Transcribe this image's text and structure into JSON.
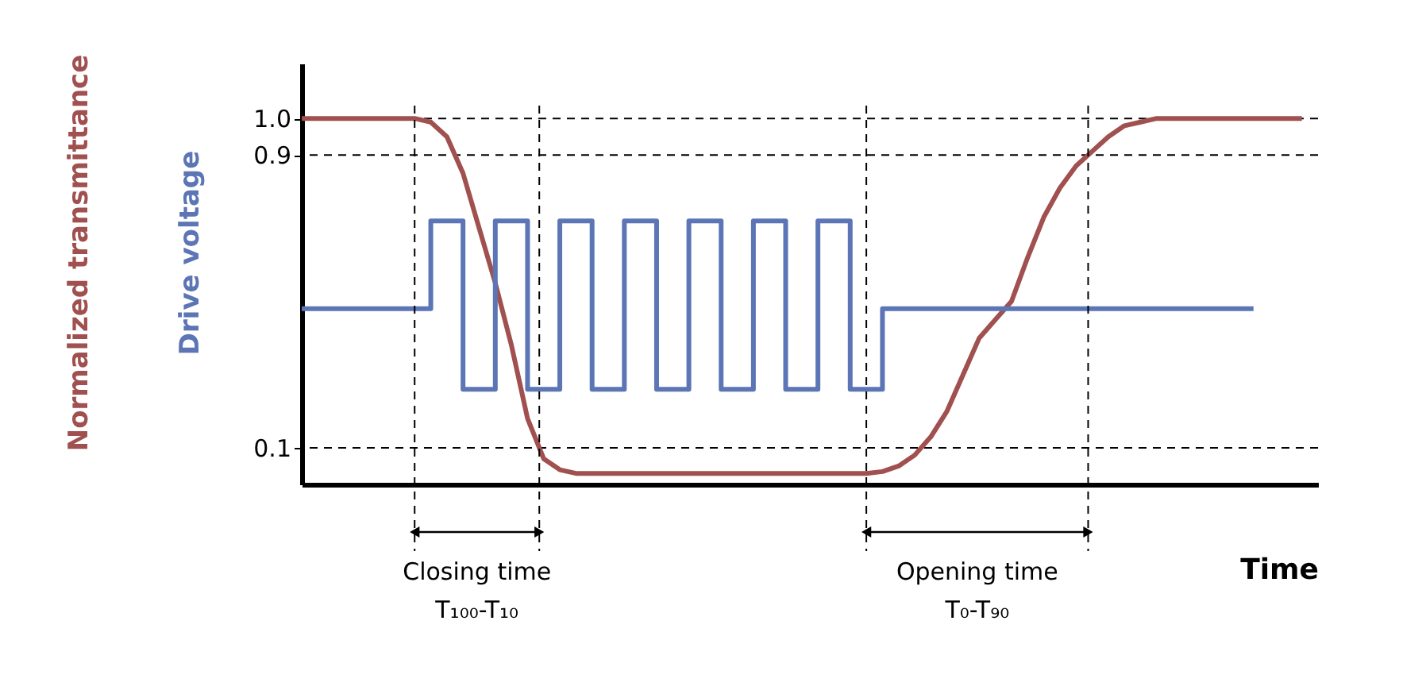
{
  "chart_data": {
    "type": "line",
    "xlabel": "Time",
    "categories": [
      null,
      null,
      null,
      null,
      null,
      null,
      null,
      null,
      null,
      null,
      null,
      null,
      null,
      null,
      null,
      null,
      null,
      null,
      null,
      null,
      null,
      null,
      null,
      null,
      null,
      null,
      null,
      null,
      null,
      null,
      null,
      null,
      null,
      null,
      null,
      null,
      null,
      null,
      null,
      null,
      null,
      null,
      null,
      null,
      null,
      null,
      null,
      null,
      null,
      null,
      null,
      null,
      null,
      null,
      null,
      null,
      null,
      null,
      null,
      null,
      null,
      null,
      null,
      null
    ],
    "ylim": [
      0,
      1.15
    ],
    "yticks": [
      0.1,
      0.9,
      {
        "value": 1,
        "label": "1.0"
      }
    ],
    "series": [
      {
        "name": "Normalized transmittance",
        "color": "#a0504f",
        "values": [
          1,
          1,
          1,
          1,
          1,
          1,
          1,
          1,
          0.99,
          0.95,
          0.85,
          0.7,
          0.55,
          0.38,
          0.18,
          0.07,
          0.04,
          0.03,
          0.03,
          0.03,
          0.03,
          0.03,
          0.03,
          0.03,
          0.03,
          0.03,
          0.03,
          0.03,
          0.03,
          0.03,
          0.03,
          0.03,
          0.03,
          0.03,
          0.03,
          0.03,
          0.035,
          0.05,
          0.08,
          0.13,
          0.2,
          0.3,
          0.4,
          0.45,
          0.5,
          0.62,
          0.73,
          0.81,
          0.87,
          0.91,
          0.95,
          0.98,
          0.99,
          1,
          1,
          1,
          1,
          1,
          1,
          1,
          1,
          1,
          1,
          null
        ]
      },
      {
        "name": "Drive voltage",
        "color": "#5b75b5",
        "type": "step",
        "values": [
          0.48,
          0.48,
          0.48,
          0.48,
          0.48,
          0.48,
          0.48,
          0.48,
          0.72,
          0.72,
          0.26,
          0.26,
          0.72,
          0.72,
          0.26,
          0.26,
          0.72,
          0.72,
          0.26,
          0.26,
          0.72,
          0.72,
          0.26,
          0.26,
          0.72,
          0.72,
          0.26,
          0.26,
          0.72,
          0.72,
          0.26,
          0.26,
          0.72,
          0.72,
          0.26,
          0.26,
          0.48,
          0.48,
          0.48,
          0.48,
          0.48,
          0.48,
          0.48,
          0.48,
          0.48,
          0.48,
          0.48,
          0.48,
          0.48,
          0.48,
          0.48,
          0.48,
          0.48,
          0.48,
          0.48,
          0.48,
          0.48,
          0.48,
          0.48,
          0.48,
          null,
          null,
          null,
          null
        ]
      }
    ],
    "ref_lines": [
      {
        "axis": "y",
        "value": 1,
        "line_style": "dashed",
        "color": "#000000"
      },
      {
        "axis": "y",
        "value": 0.9,
        "line_style": "dashed",
        "color": "#000000"
      },
      {
        "axis": "y",
        "value": 0.1,
        "line_style": "dashed",
        "color": "#000000"
      }
    ],
    "annotations": [
      "Closing time\nT₁₀₀-T₁₀",
      "Opening time\nT₀-T₉₀"
    ]
  }
}
